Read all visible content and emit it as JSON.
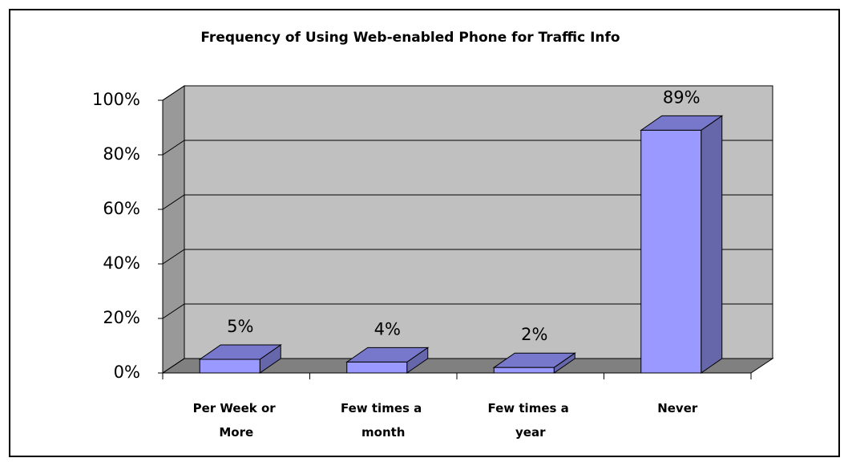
{
  "chart_data": {
    "type": "bar3d",
    "title": "Frequency of Using Web-enabled Phone for Traffic Info",
    "categories": [
      "Per Week or More",
      "Few times a month",
      "Few times a year",
      "Never"
    ],
    "values": [
      5,
      4,
      2,
      89
    ],
    "value_labels": [
      "5%",
      "4%",
      "2%",
      "89%"
    ],
    "color": "#9999ff",
    "ylim": [
      0,
      100
    ],
    "yticks": [
      {
        "value": 0,
        "label": "0%"
      },
      {
        "value": 20,
        "label": "20%"
      },
      {
        "value": 40,
        "label": "40%"
      },
      {
        "value": 60,
        "label": "60%"
      },
      {
        "value": 80,
        "label": "80%"
      },
      {
        "value": 100,
        "label": "100%"
      }
    ],
    "grid": true
  }
}
